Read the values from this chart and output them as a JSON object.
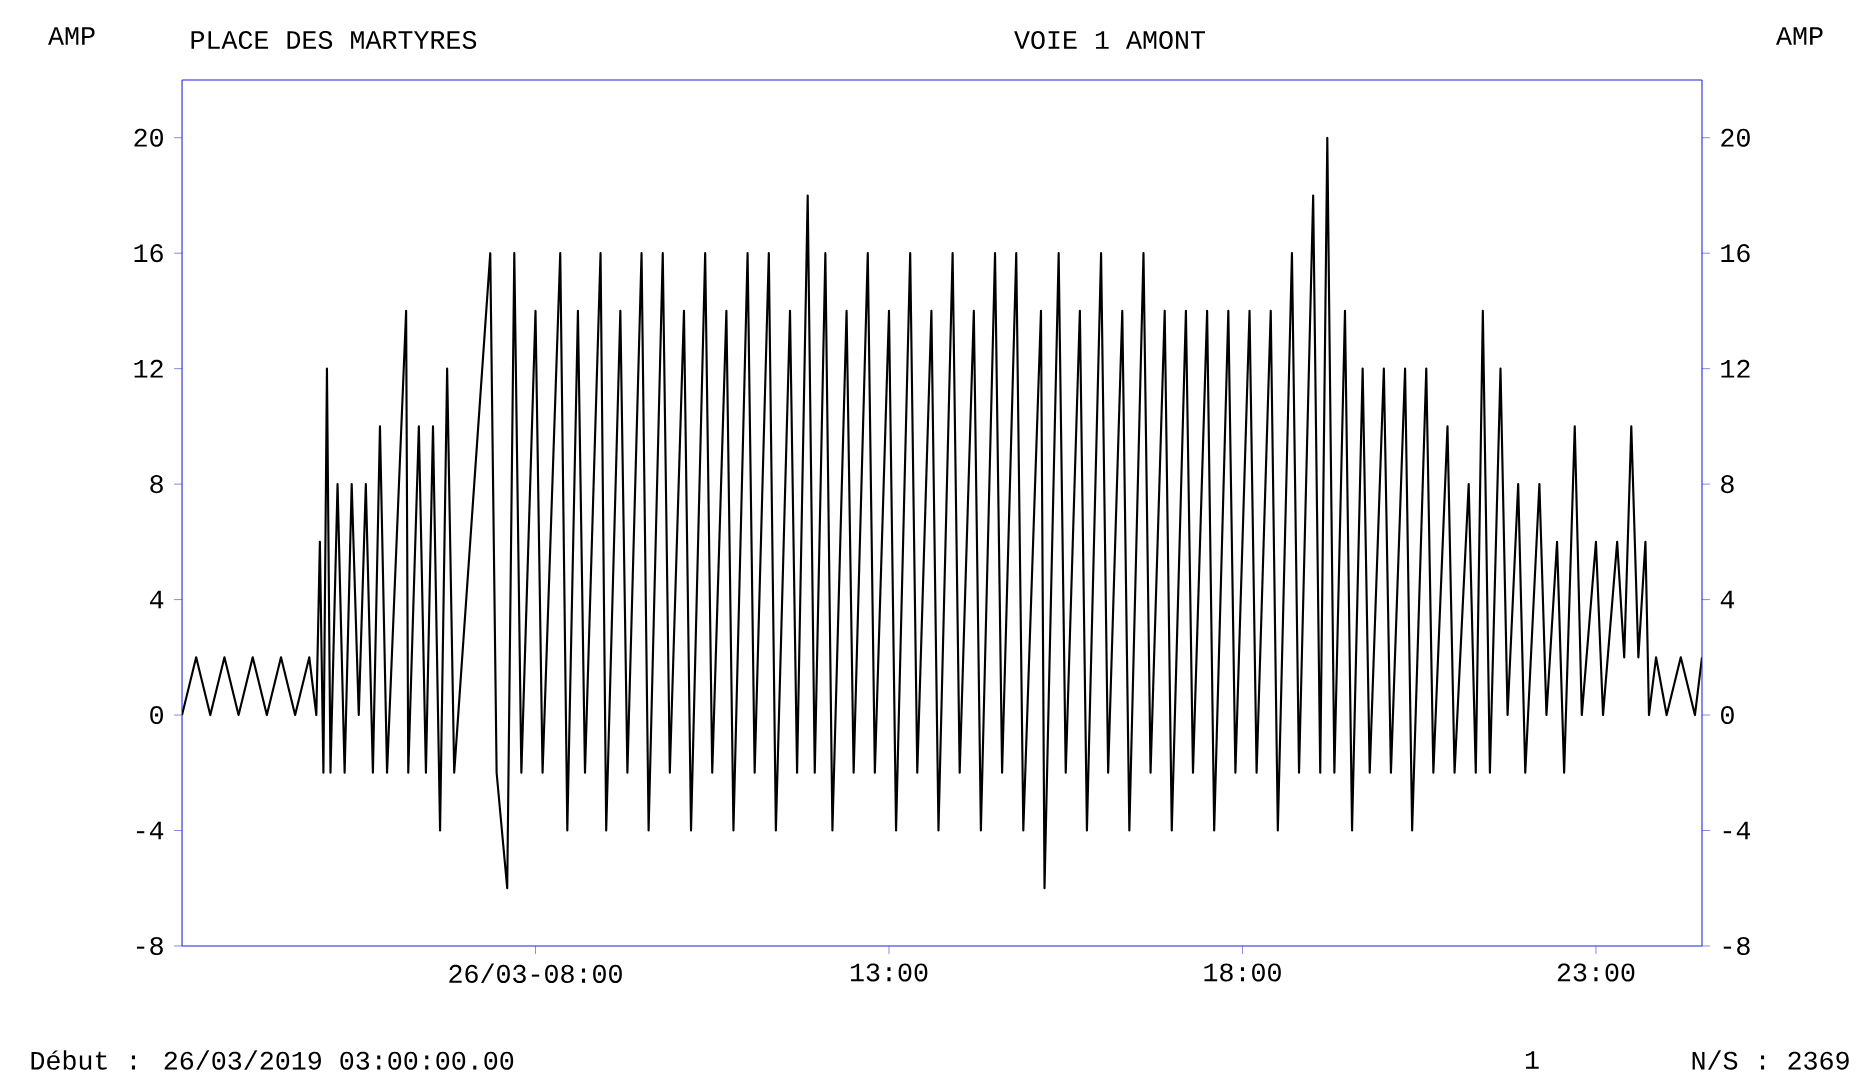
{
  "chart_data": {
    "type": "line",
    "title": "PLACE DES MARTYRES",
    "subtitle": "VOIE 1 AMONT",
    "xlim": [
      3,
      24.5
    ],
    "xticks": [
      {
        "value": 8,
        "label": "26/03-08:00"
      },
      {
        "value": 13,
        "label": "13:00"
      },
      {
        "value": 18,
        "label": "18:00"
      },
      {
        "value": 23,
        "label": "23:00"
      }
    ],
    "ylim": [
      -8,
      22
    ],
    "yticks": [
      -8,
      -4,
      0,
      4,
      8,
      12,
      16,
      20
    ],
    "y2lim": [
      -8,
      22
    ],
    "y2ticks": [
      -8,
      -4,
      0,
      4,
      8,
      12,
      16,
      20
    ],
    "grid": false,
    "marker": "none",
    "line_style": "solid",
    "annotations": [
      "Début : 26/03/2019 03:00:00.00",
      "1",
      "N/S : 2369",
      "AMP",
      "AMP"
    ],
    "series": [
      {
        "color": "#000000",
        "x": [
          3.0,
          3.2,
          3.4,
          3.6,
          3.8,
          4.0,
          4.2,
          4.4,
          4.6,
          4.8,
          4.9,
          4.95,
          5.0,
          5.05,
          5.1,
          5.2,
          5.3,
          5.4,
          5.5,
          5.6,
          5.7,
          5.8,
          5.9,
          6.17,
          6.2,
          6.35,
          6.45,
          6.55,
          6.65,
          6.75,
          6.85,
          7.36,
          7.45,
          7.6,
          7.7,
          7.8,
          8.0,
          8.1,
          8.35,
          8.45,
          8.6,
          8.7,
          8.92,
          9.0,
          9.2,
          9.3,
          9.5,
          9.6,
          9.8,
          9.9,
          10.1,
          10.2,
          10.4,
          10.5,
          10.7,
          10.8,
          11.0,
          11.1,
          11.3,
          11.4,
          11.6,
          11.7,
          11.85,
          11.95,
          12.1,
          12.2,
          12.4,
          12.5,
          12.7,
          12.8,
          13.0,
          13.1,
          13.3,
          13.4,
          13.6,
          13.7,
          13.9,
          14.0,
          14.2,
          14.3,
          14.5,
          14.6,
          14.8,
          14.9,
          15.15,
          15.2,
          15.4,
          15.5,
          15.7,
          15.8,
          16.0,
          16.1,
          16.3,
          16.4,
          16.6,
          16.7,
          16.9,
          17.0,
          17.2,
          17.3,
          17.5,
          17.6,
          17.8,
          17.9,
          18.1,
          18.2,
          18.4,
          18.5,
          18.7,
          18.8,
          19.0,
          19.1,
          19.2,
          19.3,
          19.45,
          19.55,
          19.7,
          19.8,
          20.0,
          20.1,
          20.3,
          20.4,
          20.6,
          20.7,
          20.9,
          21.0,
          21.2,
          21.3,
          21.4,
          21.5,
          21.65,
          21.75,
          21.9,
          22.0,
          22.2,
          22.3,
          22.45,
          22.55,
          22.7,
          22.8,
          23.0,
          23.1,
          23.3,
          23.4,
          23.5,
          23.6,
          23.7,
          23.75,
          23.85,
          24.0,
          24.2,
          24.4,
          24.5
        ],
        "values": [
          0,
          2,
          0,
          2,
          0,
          2,
          0,
          2,
          0,
          2,
          0,
          6,
          -2,
          12,
          -2,
          8,
          -2,
          8,
          0,
          8,
          -2,
          10,
          -2,
          14,
          -2,
          10,
          -2,
          10,
          -4,
          12,
          -2,
          16,
          -2,
          -6,
          16,
          -2,
          14,
          -2,
          16,
          -4,
          14,
          -2,
          16,
          -4,
          14,
          -2,
          16,
          -4,
          16,
          -2,
          14,
          -4,
          16,
          -2,
          14,
          -4,
          16,
          -2,
          16,
          -4,
          14,
          -2,
          18,
          -2,
          16,
          -4,
          14,
          -2,
          16,
          -2,
          14,
          -4,
          16,
          -2,
          14,
          -4,
          16,
          -2,
          14,
          -4,
          16,
          -2,
          16,
          -4,
          14,
          -6,
          16,
          -2,
          14,
          -4,
          16,
          -2,
          14,
          -4,
          16,
          -2,
          14,
          -4,
          14,
          -2,
          14,
          -4,
          14,
          -2,
          14,
          -2,
          14,
          -4,
          16,
          -2,
          18,
          -2,
          20,
          -2,
          14,
          -4,
          12,
          -2,
          12,
          -2,
          12,
          -4,
          12,
          -2,
          10,
          -2,
          8,
          -2,
          14,
          -2,
          12,
          0,
          8,
          -2,
          8,
          0,
          6,
          -2,
          10,
          0,
          6,
          0,
          6,
          2,
          10,
          2,
          6,
          0,
          2,
          0,
          2,
          0,
          2
        ]
      }
    ]
  }
}
